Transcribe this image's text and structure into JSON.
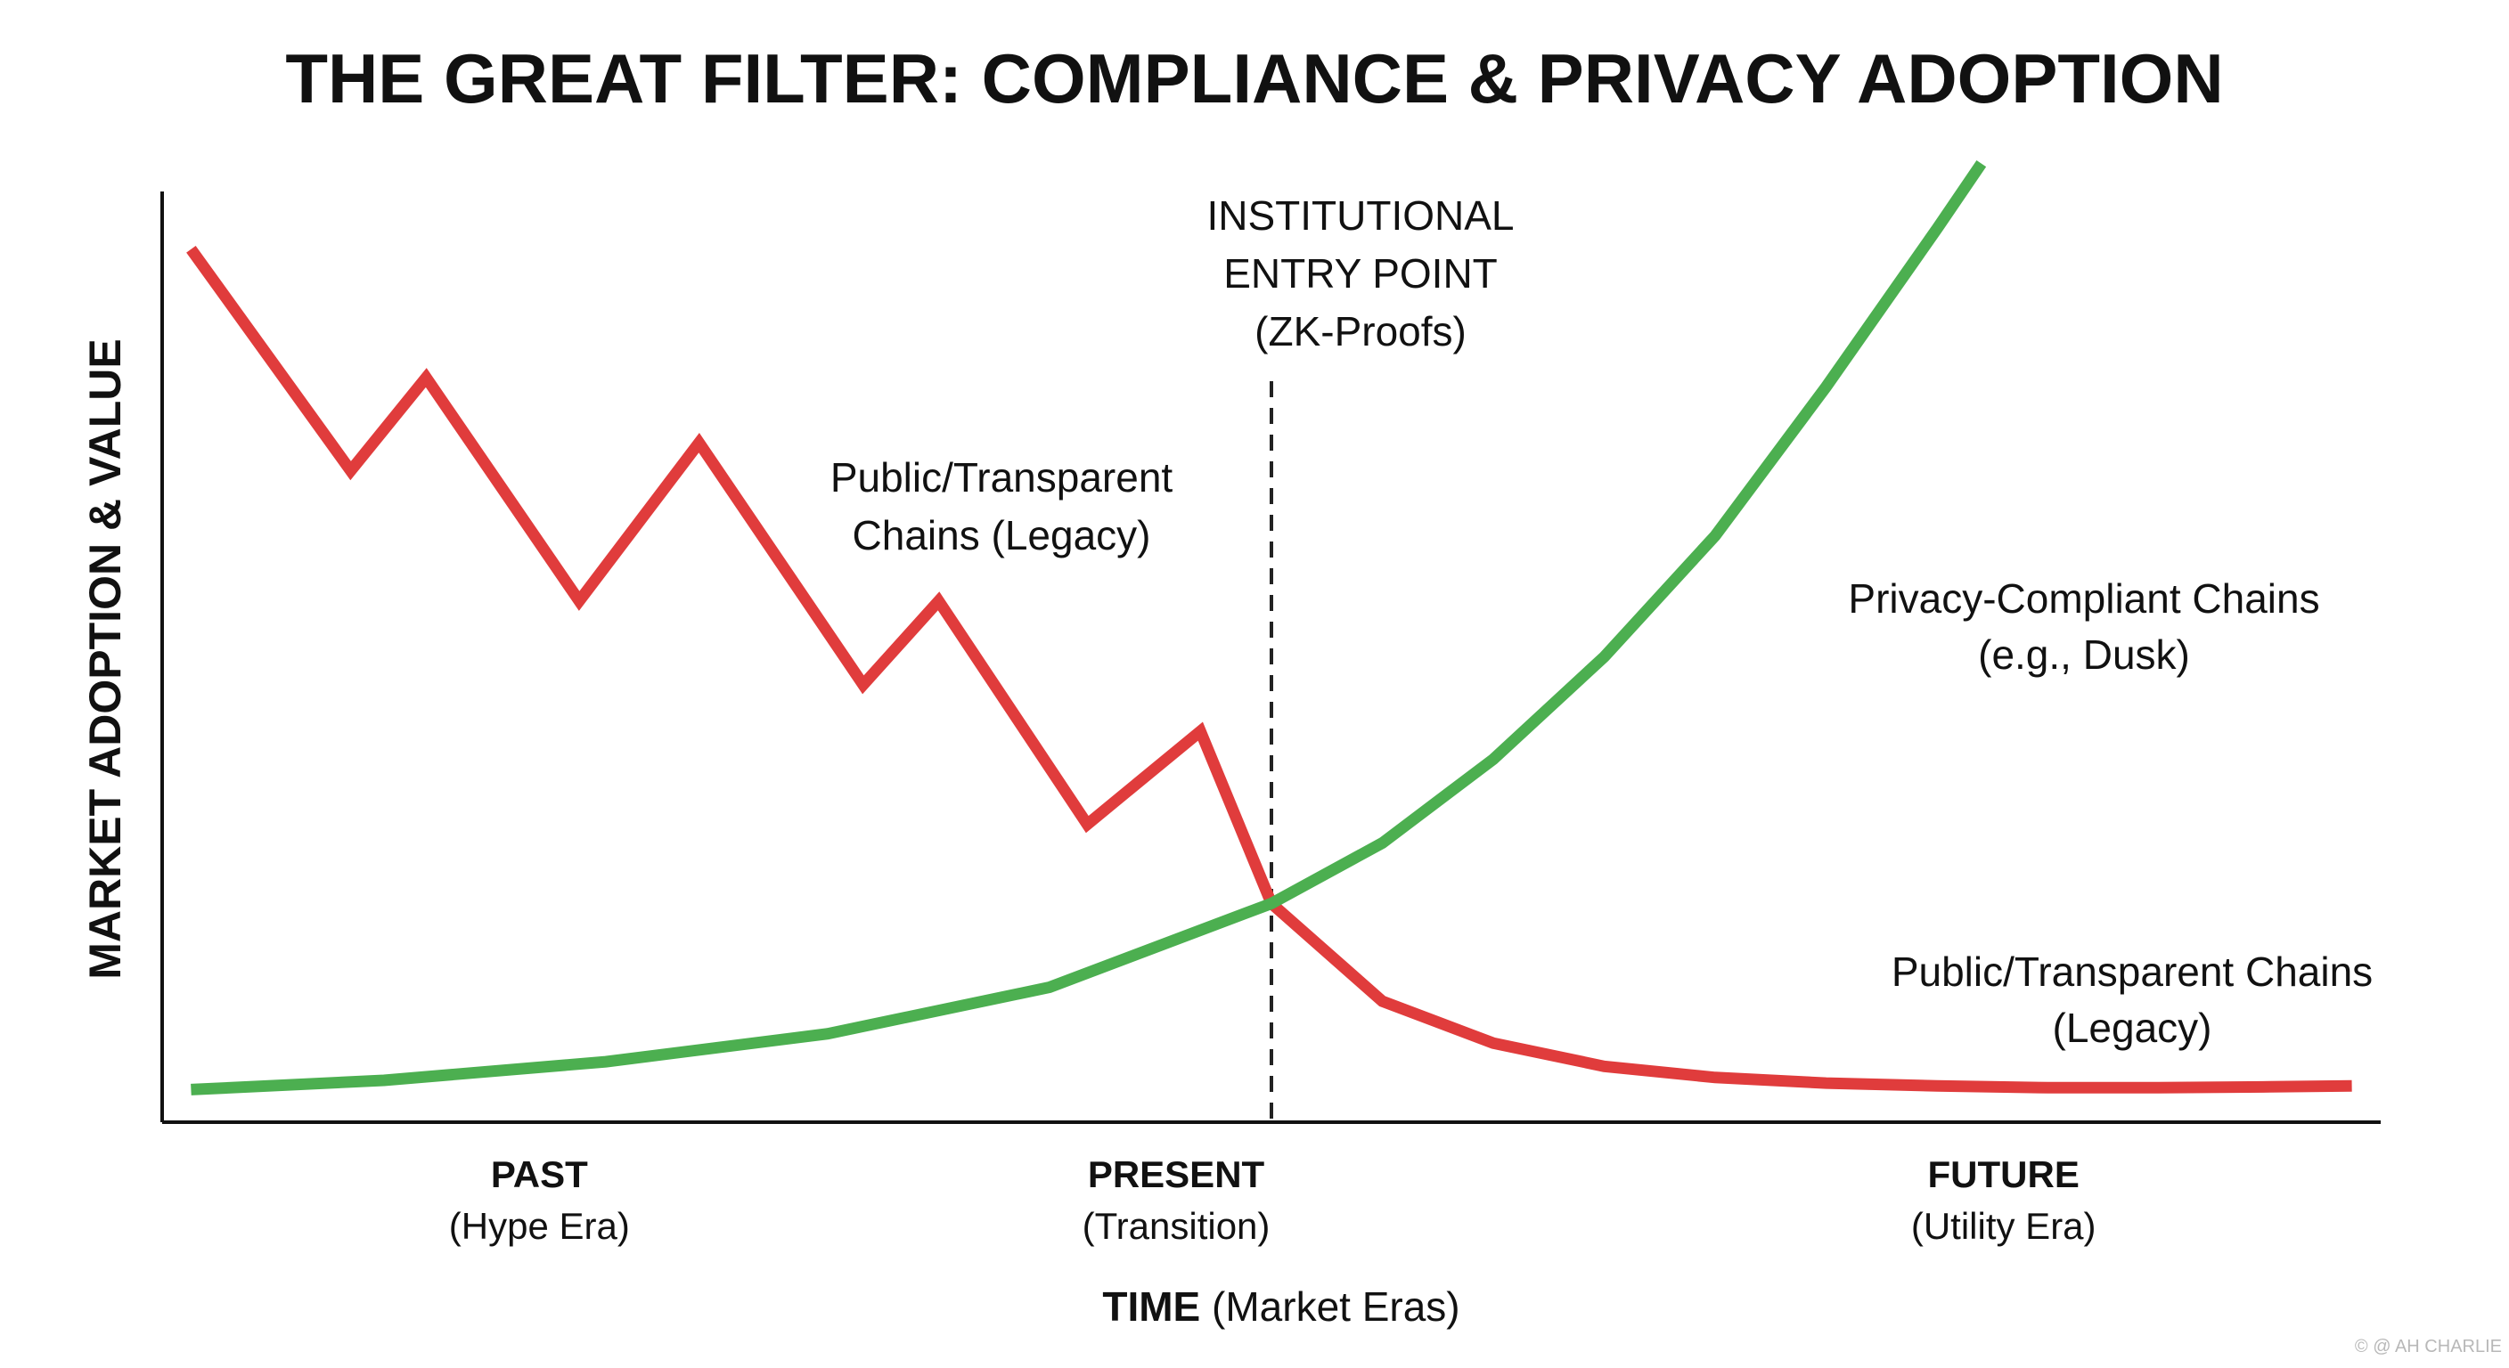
{
  "chart_data": {
    "type": "line",
    "title": "THE GREAT FILTER: COMPLIANCE & PRIVACY ADOPTION",
    "ylabel": "MARKET ADOPTION & VALUE",
    "xlabel_bold": "TIME",
    "xlabel_rest": " (Market Eras)",
    "xlim": [
      0,
      10
    ],
    "ylim": [
      0,
      10
    ],
    "grid": false,
    "x_ticks": [
      {
        "x": 1.7,
        "label": "PAST",
        "sublabel": "(Hype Era)"
      },
      {
        "x": 5.0,
        "label": "PRESENT",
        "sublabel": "(Transition)"
      },
      {
        "x": 8.3,
        "label": "FUTURE",
        "sublabel": "(Utility Era)"
      }
    ],
    "series": [
      {
        "name": "Public/Transparent Chains (Legacy)",
        "color": "#e03c3c",
        "points": [
          [
            0.13,
            9.38
          ],
          [
            0.85,
            7.0
          ],
          [
            1.19,
            8.0
          ],
          [
            1.88,
            5.6
          ],
          [
            2.42,
            7.3
          ],
          [
            3.16,
            4.7
          ],
          [
            3.5,
            5.6
          ],
          [
            4.17,
            3.2
          ],
          [
            4.68,
            4.2
          ],
          [
            5.0,
            2.35
          ],
          [
            5.5,
            1.3
          ],
          [
            6.0,
            0.85
          ],
          [
            6.5,
            0.6
          ],
          [
            7.0,
            0.48
          ],
          [
            7.5,
            0.42
          ],
          [
            8.0,
            0.39
          ],
          [
            8.5,
            0.37
          ],
          [
            9.0,
            0.37
          ],
          [
            9.5,
            0.38
          ],
          [
            9.87,
            0.39
          ]
        ]
      },
      {
        "name": "Privacy-Compliant Chains (e.g., Dusk)",
        "color": "#4caf50",
        "points": [
          [
            0.13,
            0.35
          ],
          [
            1.0,
            0.45
          ],
          [
            2.0,
            0.65
          ],
          [
            3.0,
            0.95
          ],
          [
            4.0,
            1.45
          ],
          [
            5.0,
            2.35
          ],
          [
            5.5,
            3.0
          ],
          [
            6.0,
            3.9
          ],
          [
            6.5,
            5.0
          ],
          [
            7.0,
            6.3
          ],
          [
            7.5,
            7.9
          ],
          [
            8.0,
            9.6
          ],
          [
            8.2,
            10.3
          ]
        ]
      }
    ],
    "vline": {
      "x": 5.0,
      "color": "#222222",
      "dash": true
    },
    "annotations": [
      {
        "lines": [
          "INSTITUTIONAL",
          "ENTRY POINT",
          "(ZK-Proofs)"
        ]
      },
      {
        "lines": [
          "Public/Transparent",
          "Chains (Legacy)"
        ]
      },
      {
        "lines": [
          "Privacy-Compliant Chains",
          "(e.g., Dusk)"
        ]
      },
      {
        "lines": [
          "Public/Transparent Chains",
          "(Legacy)"
        ]
      }
    ]
  },
  "credit": "© @ AH CHARLIE"
}
